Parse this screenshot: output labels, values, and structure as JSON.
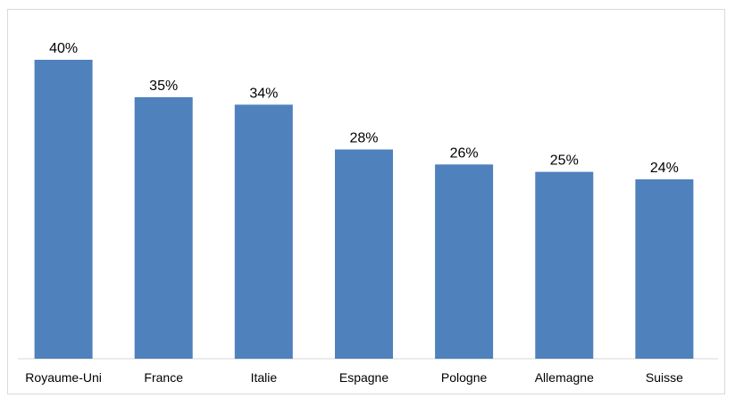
{
  "chart_data": {
    "type": "bar",
    "categories": [
      "Royaume-Uni",
      "France",
      "Italie",
      "Espagne",
      "Pologne",
      "Allemagne",
      "Suisse"
    ],
    "values": [
      40,
      35,
      34,
      28,
      26,
      25,
      24
    ],
    "value_labels": [
      "40%",
      "35%",
      "34%",
      "28%",
      "26%",
      "25%",
      "24%"
    ],
    "title": "",
    "xlabel": "",
    "ylabel": "",
    "ylim": [
      0,
      40
    ],
    "grid": false,
    "bar_color": "#4f81bd"
  }
}
